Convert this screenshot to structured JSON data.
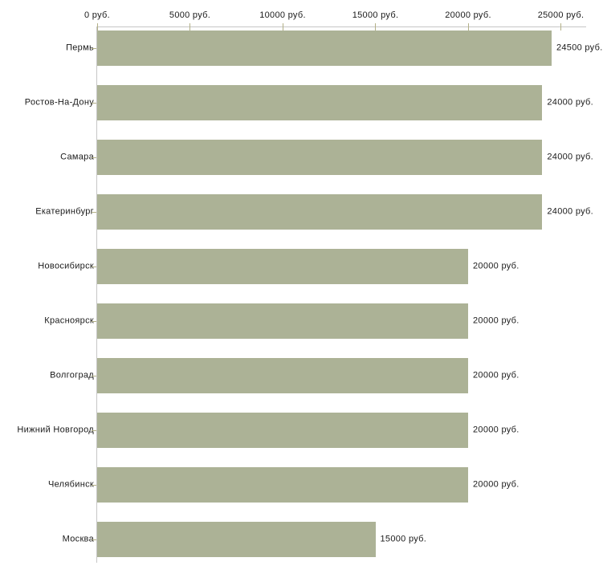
{
  "chart_data": {
    "type": "bar",
    "orientation": "horizontal",
    "title": "",
    "xlabel": "",
    "ylabel": "",
    "unit": "руб.",
    "categories": [
      "Пермь",
      "Ростов-На-Дону",
      "Самара",
      "Екатеринбург",
      "Новосибирск",
      "Красноярск",
      "Волгоград",
      "Нижний Новгород",
      "Челябинск",
      "Москва"
    ],
    "values": [
      24500,
      24000,
      24000,
      24000,
      20000,
      20000,
      20000,
      20000,
      20000,
      15000
    ],
    "value_labels": [
      "24500 руб.",
      "24000 руб.",
      "24000 руб.",
      "24000 руб.",
      "20000 руб.",
      "20000 руб.",
      "20000 руб.",
      "20000 руб.",
      "20000 руб.",
      "15000 руб."
    ],
    "x_axis": {
      "position": "top",
      "min": 0,
      "max": 25000,
      "tick_values": [
        0,
        5000,
        10000,
        15000,
        20000,
        25000
      ],
      "tick_labels": [
        "0 руб.",
        "5000 руб.",
        "10000 руб.",
        "15000 руб.",
        "20000 руб.",
        "25000 руб."
      ]
    },
    "grid": false,
    "legend": false,
    "colors": {
      "bar": "#acb296",
      "axis_line": "#c6c6c6",
      "tick_mark": "#b3b087",
      "text": "#1a1a1a",
      "background": "#ffffff"
    }
  }
}
